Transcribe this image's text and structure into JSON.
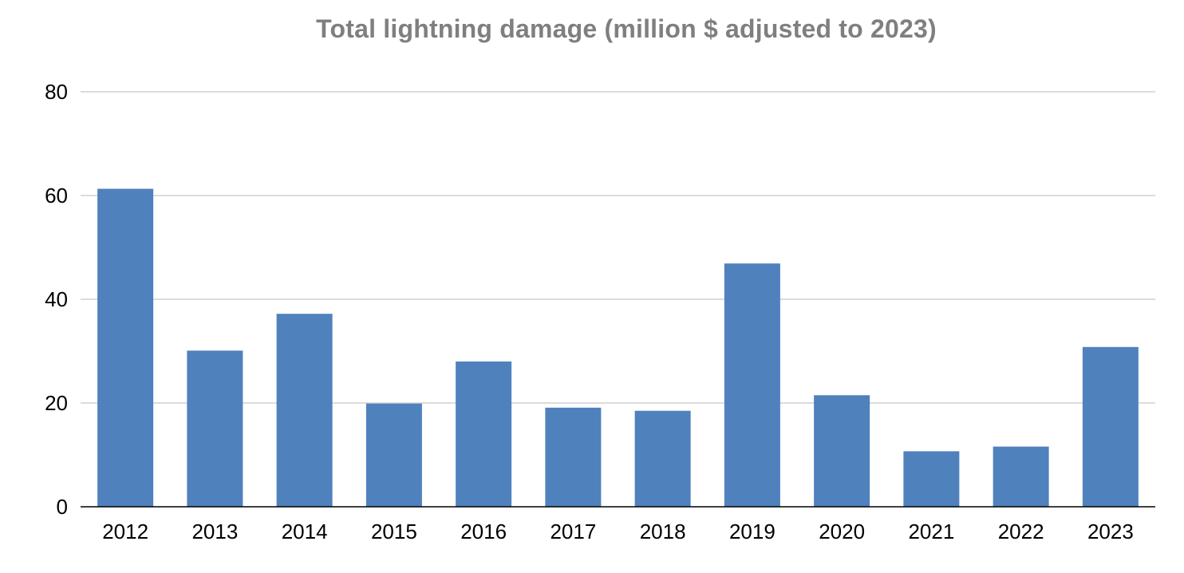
{
  "chart_data": {
    "type": "bar",
    "title": "Total lightning damage (million $ adjusted to 2023)",
    "xlabel": "",
    "ylabel": "",
    "categories": [
      "2012",
      "2013",
      "2014",
      "2015",
      "2016",
      "2017",
      "2018",
      "2019",
      "2020",
      "2021",
      "2022",
      "2023"
    ],
    "values": [
      61.3,
      30.1,
      37.2,
      19.9,
      28.0,
      19.1,
      18.5,
      46.9,
      21.5,
      10.7,
      11.6,
      30.8
    ],
    "ylim": [
      0,
      80
    ],
    "yticks": [
      "0",
      "20",
      "40",
      "60",
      "80"
    ],
    "grid": true,
    "legend": "none",
    "colors": {
      "bar": "#4f81bd",
      "grid": "#d0d0d0",
      "axis": "#000000",
      "title": "#7f7f7f"
    }
  }
}
